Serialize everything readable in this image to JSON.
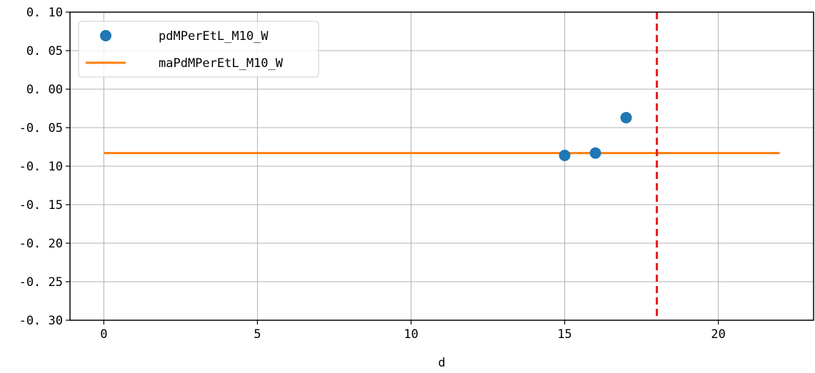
{
  "chart_data": {
    "type": "scatter",
    "xlabel": "d",
    "ylabel": "",
    "xlim": [
      -1.1,
      23.1
    ],
    "ylim": [
      -0.3,
      0.1
    ],
    "xticks": [
      0,
      5,
      10,
      15,
      20
    ],
    "xtick_labels": [
      "0",
      "5",
      "10",
      "15",
      "20"
    ],
    "yticks": [
      0.1,
      0.05,
      0.0,
      -0.05,
      -0.1,
      -0.15,
      -0.2,
      -0.25,
      -0.3
    ],
    "ytick_labels": [
      "0. 10",
      "0. 05",
      "0. 00",
      "-0. 05",
      "-0. 10",
      "-0. 15",
      "-0. 20",
      "-0. 25",
      "-0. 30"
    ],
    "grid": true,
    "legend_position": "top-left",
    "series": [
      {
        "name": "pdMPerEtL_M10_W",
        "kind": "scatter",
        "color": "#1f77b4",
        "x": [
          15,
          16,
          17
        ],
        "y": [
          -0.086,
          -0.083,
          -0.037
        ]
      },
      {
        "name": "maPdMPerEtL_M10_W",
        "kind": "line",
        "color": "#ff7f0e",
        "x": [
          0,
          22
        ],
        "y": [
          -0.083,
          -0.083
        ]
      }
    ],
    "annotations": [
      {
        "kind": "vline",
        "x": 18,
        "color": "#e31a1c",
        "style": "dashed"
      }
    ]
  }
}
